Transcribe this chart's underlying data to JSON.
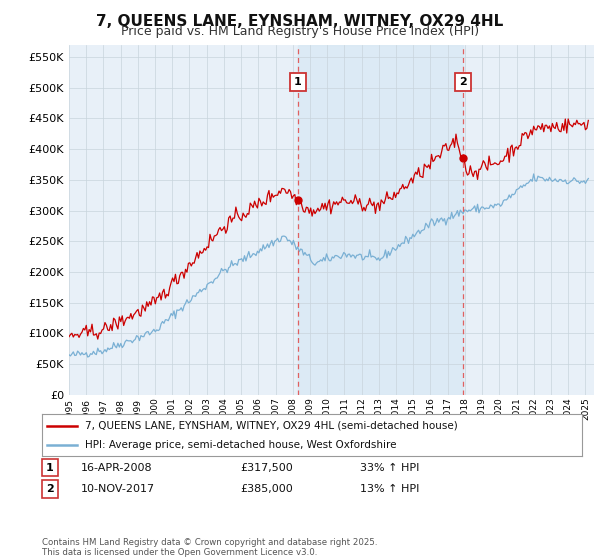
{
  "title": "7, QUEENS LANE, EYNSHAM, WITNEY, OX29 4HL",
  "subtitle": "Price paid vs. HM Land Registry's House Price Index (HPI)",
  "ylim": [
    0,
    570000
  ],
  "yticks": [
    0,
    50000,
    100000,
    150000,
    200000,
    250000,
    300000,
    350000,
    400000,
    450000,
    500000,
    550000
  ],
  "ytick_labels": [
    "£0",
    "£50K",
    "£100K",
    "£150K",
    "£200K",
    "£250K",
    "£300K",
    "£350K",
    "£400K",
    "£450K",
    "£500K",
    "£550K"
  ],
  "line1_color": "#cc0000",
  "line2_color": "#7ab0d4",
  "line1_label": "7, QUEENS LANE, EYNSHAM, WITNEY, OX29 4HL (semi-detached house)",
  "line2_label": "HPI: Average price, semi-detached house, West Oxfordshire",
  "sale1_date_label": "16-APR-2008",
  "sale1_price": 317500,
  "sale1_pct": "33% ↑ HPI",
  "sale2_date_label": "10-NOV-2017",
  "sale2_price": 385000,
  "sale2_pct": "13% ↑ HPI",
  "footer": "Contains HM Land Registry data © Crown copyright and database right 2025.\nThis data is licensed under the Open Government Licence v3.0.",
  "bg_color": "#ffffff",
  "plot_bg_color": "#e8f0f8",
  "vline_color": "#e06060",
  "vfill_color": "#d8e8f4",
  "grid_color": "#c8d4dc",
  "title_fontsize": 11,
  "subtitle_fontsize": 9,
  "tick_fontsize": 8
}
